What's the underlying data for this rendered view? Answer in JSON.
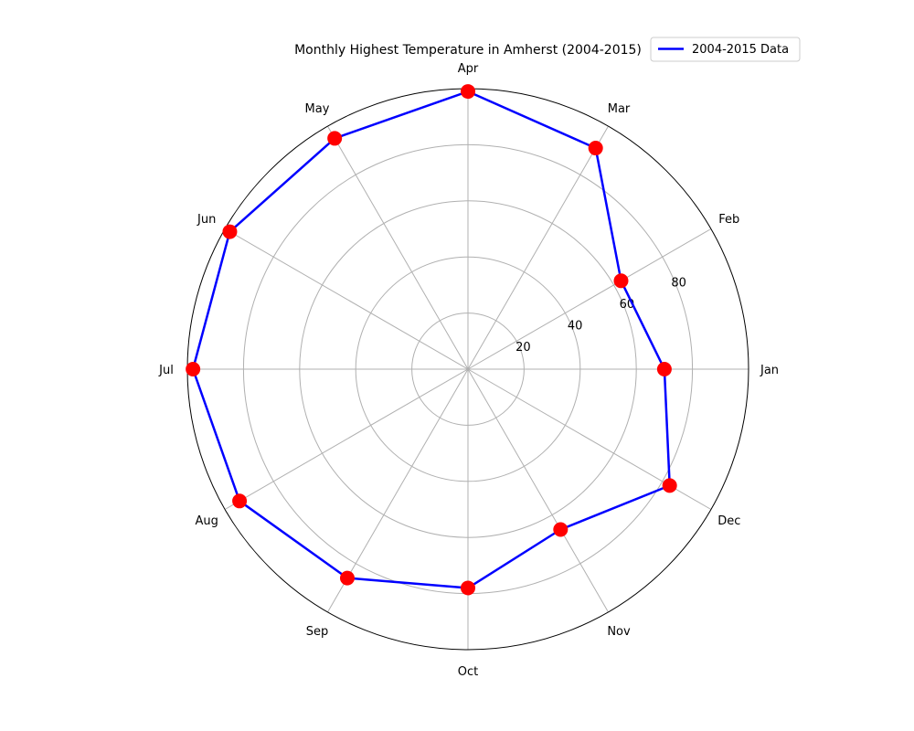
{
  "chart_data": {
    "type": "polar-line",
    "title": "Monthly Highest Temperature in Amherst (2004-2015)",
    "categories": [
      "Jan",
      "Feb",
      "Mar",
      "Apr",
      "May",
      "Jun",
      "Jul",
      "Aug",
      "Sep",
      "Oct",
      "Nov",
      "Dec"
    ],
    "series": [
      {
        "name": "2004-2015 Data",
        "values": [
          70,
          63,
          91,
          99,
          95,
          98,
          98,
          94,
          86,
          78,
          66,
          83
        ]
      }
    ],
    "radial_ticks": [
      20,
      40,
      60,
      80
    ],
    "rlim": [
      0,
      100
    ],
    "grid": true,
    "legend_position": "top-right",
    "colors": {
      "line": "#0000ff",
      "marker": "#ff0000",
      "grid": "#b0b0b0",
      "frame": "#000000"
    }
  }
}
